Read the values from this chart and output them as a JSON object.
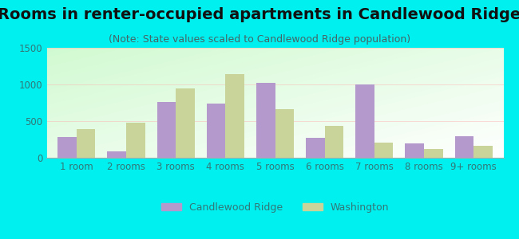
{
  "title": "Rooms in renter-occupied apartments in Candlewood Ridge",
  "subtitle": "(Note: State values scaled to Candlewood Ridge population)",
  "categories": [
    "1 room",
    "2 rooms",
    "3 rooms",
    "4 rooms",
    "5 rooms",
    "6 rooms",
    "7 rooms",
    "8 rooms",
    "9+ rooms"
  ],
  "candlewood_values": [
    280,
    90,
    760,
    740,
    1020,
    270,
    1000,
    200,
    290
  ],
  "washington_values": [
    390,
    480,
    950,
    1140,
    660,
    430,
    210,
    120,
    165
  ],
  "candlewood_color": "#b399cc",
  "washington_color": "#c8d49a",
  "background_color": "#00f0f0",
  "ylim": [
    0,
    1500
  ],
  "yticks": [
    0,
    500,
    1000,
    1500
  ],
  "bar_width": 0.38,
  "title_fontsize": 14,
  "subtitle_fontsize": 9,
  "tick_fontsize": 8.5,
  "legend_fontsize": 9,
  "tick_color": "#337777",
  "title_color": "#111111",
  "subtitle_color": "#446666"
}
